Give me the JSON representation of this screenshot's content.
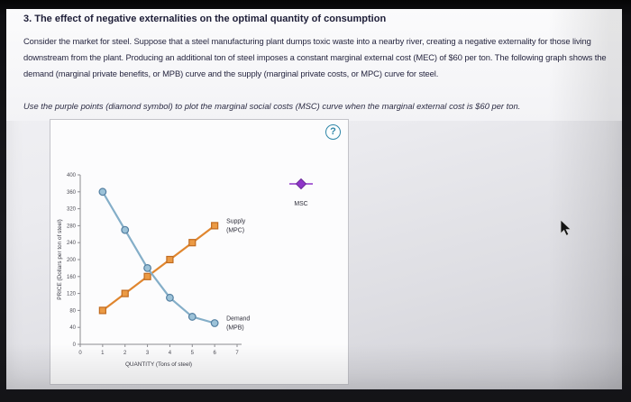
{
  "question": {
    "title": "3. The effect of negative externalities on the optimal quantity of consumption",
    "paragraph": "Consider the market for steel. Suppose that a steel manufacturing plant dumps toxic waste into a nearby river, creating a negative externality for those living downstream from the plant. Producing an additional ton of steel imposes a constant marginal external cost (MEC) of $60 per ton. The following graph shows the demand (marginal private benefits, or MPB) curve and the supply (marginal private costs, or MPC) curve for steel.",
    "instruction": "Use the purple points (diamond symbol) to plot the marginal social costs (MSC) curve when the marginal external cost is $60 per ton."
  },
  "panel": {
    "help_label": "?"
  },
  "chart_data": {
    "type": "line",
    "title": "",
    "xlabel": "QUANTITY (Tons of steel)",
    "ylabel": "PRICE (Dollars per ton of steel)",
    "xlim": [
      0,
      7
    ],
    "ylim": [
      0,
      400
    ],
    "x_ticks": [
      0,
      1,
      2,
      3,
      4,
      5,
      6,
      7
    ],
    "y_ticks": [
      0,
      40,
      80,
      120,
      160,
      200,
      240,
      280,
      320,
      360,
      400
    ],
    "grid": false,
    "series": [
      {
        "id": "supply",
        "name": "Supply (MPC)",
        "label_lines": [
          "Supply",
          "(MPC)"
        ],
        "marker": "square",
        "color": "#e0862f",
        "marker_fill": "#eb9a44",
        "marker_stroke": "#c06a1f",
        "x": [
          1,
          2,
          3,
          4,
          5,
          6
        ],
        "y": [
          80,
          120,
          160,
          200,
          240,
          280
        ]
      },
      {
        "id": "demand",
        "name": "Demand (MPB)",
        "label_lines": [
          "Demand",
          "(MPB)"
        ],
        "marker": "circle",
        "color": "#84aec8",
        "marker_fill": "#9cc2d8",
        "marker_stroke": "#527ea0",
        "x": [
          1,
          2,
          3,
          4,
          5,
          6
        ],
        "y": [
          360,
          270,
          180,
          110,
          65,
          50
        ]
      }
    ],
    "palette_point": {
      "label": "MSC",
      "symbol": "diamond",
      "color": "#8f35c9",
      "border": "#6b2a99"
    }
  }
}
